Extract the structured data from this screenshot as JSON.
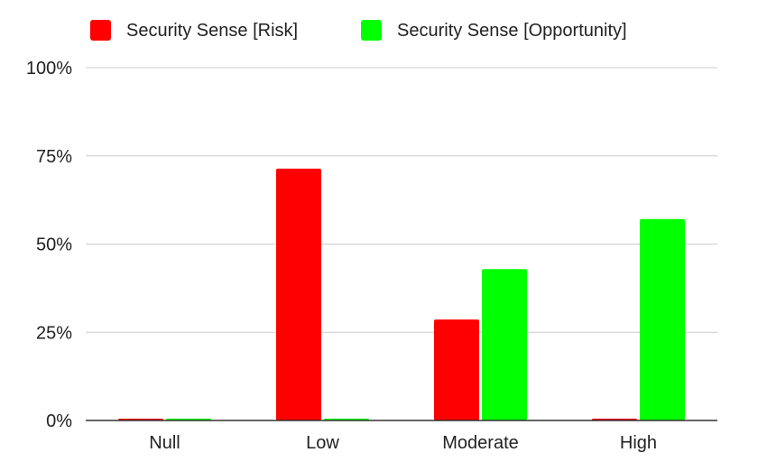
{
  "chart_data": {
    "type": "bar",
    "categories": [
      "Null",
      "Low",
      "Moderate",
      "High"
    ],
    "series": [
      {
        "name": "Security Sense [Risk]",
        "color": "#ff0000",
        "values": [
          0,
          71.4,
          28.6,
          0
        ]
      },
      {
        "name": "Security Sense [Opportunity]",
        "color": "#00ff00",
        "values": [
          0,
          0,
          42.9,
          57.1
        ]
      }
    ],
    "ylim": [
      0,
      100
    ],
    "yticks": [
      0,
      25,
      50,
      75,
      100
    ],
    "ytick_labels": [
      "0%",
      "25%",
      "50%",
      "75%",
      "100%"
    ],
    "grid": true,
    "legend_position": "top-left"
  }
}
